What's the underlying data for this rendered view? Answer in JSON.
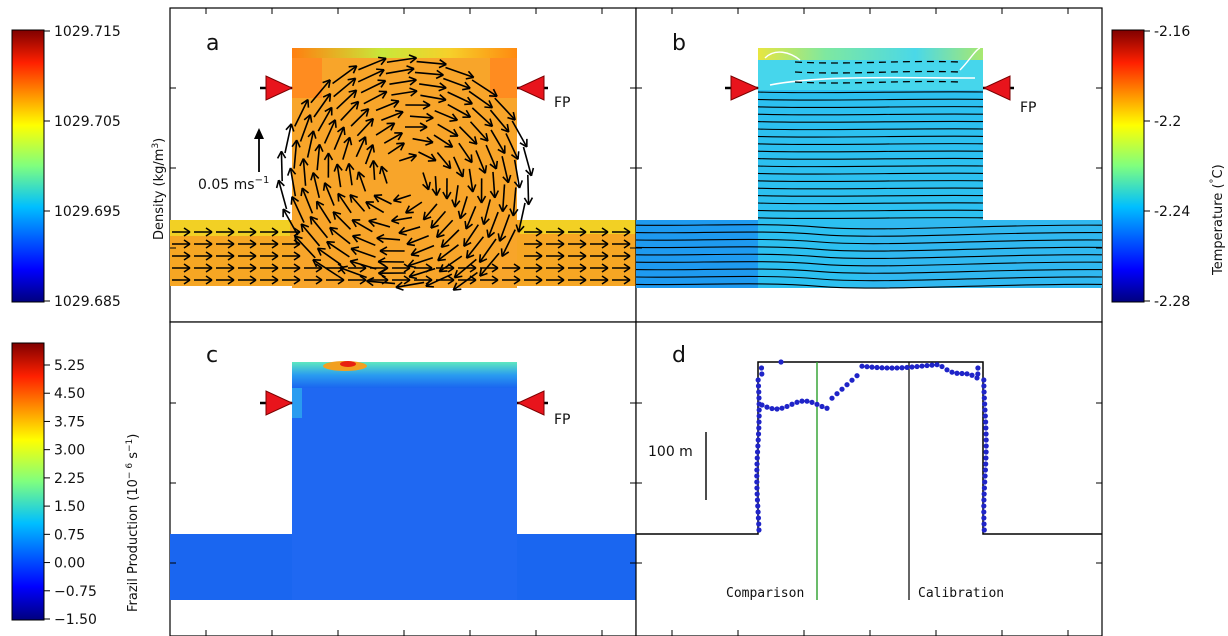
{
  "panels": {
    "a": {
      "letter": "a",
      "fp_label": "",
      "vector_label": "0.05 ms",
      "vector_unit_exp": "−1"
    },
    "b": {
      "letter": "b",
      "fp_label": "FP"
    },
    "c": {
      "letter": "c",
      "fp_label": "FP"
    },
    "d": {
      "letter": "d",
      "scale_label": "100 m",
      "comparison_label": "Comparison",
      "calibration_label": "Calibration"
    }
  },
  "panel_a_fp": "FP",
  "colorbars": {
    "density": {
      "label": "Density (kg/m",
      "label_sup": "3",
      "label_close": ")",
      "ticks": [
        "1029.715",
        "1029.705",
        "1029.695",
        "1029.685"
      ]
    },
    "temperature": {
      "label": "Temperature (",
      "label_deg": "°",
      "label_unit": "C)",
      "ticks": [
        "-2.16",
        "-2.2",
        "-2.24",
        "-2.28"
      ]
    },
    "frazil": {
      "label": "Frazil Production (10",
      "label_sup": "− 6",
      "label_mid": " s",
      "label_sup2": "−1",
      "label_close": ")",
      "ticks": [
        "5.25",
        "4.50",
        "3.75",
        "3.00",
        "2.25",
        "1.50",
        "0.75",
        "0.00",
        "−0.75",
        "−1.50"
      ]
    }
  },
  "colors": {
    "jet": [
      "#00007f",
      "#0000ff",
      "#007fff",
      "#00ffff",
      "#7fff7f",
      "#ffff00",
      "#ff7f00",
      "#ff0000",
      "#7f0000"
    ],
    "arrow_marker": "#e8141c",
    "profile_dots": "#1f24c8",
    "comparison_line": "#2ca02c",
    "density_fill": "#f6a623",
    "temperature_fill": "#33c3f0",
    "frazil_fill": "#1a66f0"
  }
}
